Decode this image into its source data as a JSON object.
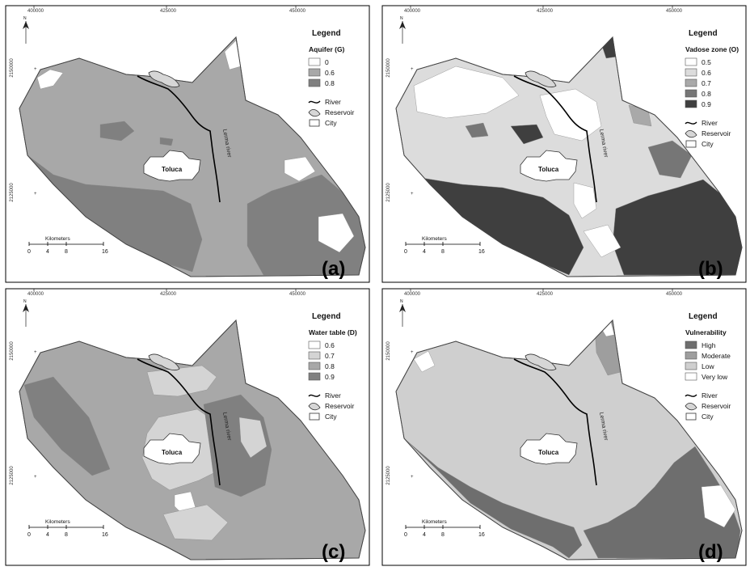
{
  "panels": [
    {
      "id": "a",
      "label": "(a)",
      "x_ticks": [
        "400000",
        "425000",
        "450000"
      ],
      "y_ticks": [
        "2150000",
        "2125000"
      ],
      "legend_title": "Legend",
      "legend_subtitle": "Aquifer (G)",
      "classes": [
        {
          "label": "0",
          "color": "#ffffff"
        },
        {
          "label": "0.6",
          "color": "#a8a8a8"
        },
        {
          "label": "0.8",
          "color": "#808080"
        }
      ],
      "base_color": "#a8a8a8",
      "features": {
        "river": "River",
        "reservoir": "Reservoir",
        "city": "City"
      },
      "city_name": "Toluca",
      "river_name": "Lerma river",
      "scale_title": "Kilometers",
      "scale_ticks": [
        "0",
        "4",
        "8",
        "16"
      ]
    },
    {
      "id": "b",
      "label": "(b)",
      "x_ticks": [
        "400000",
        "425000",
        "450000"
      ],
      "y_ticks": [
        "2150000",
        "2125000"
      ],
      "legend_title": "Legend",
      "legend_subtitle": "Vadose zone (O)",
      "classes": [
        {
          "label": "0.5",
          "color": "#ffffff"
        },
        {
          "label": "0.6",
          "color": "#dcdcdc"
        },
        {
          "label": "0.7",
          "color": "#a9a9a9"
        },
        {
          "label": "0.8",
          "color": "#767676"
        },
        {
          "label": "0.9",
          "color": "#3f3f3f"
        }
      ],
      "base_color": "#dcdcdc",
      "features": {
        "river": "River",
        "reservoir": "Reservoir",
        "city": "City"
      },
      "city_name": "Toluca",
      "river_name": "Lerma river",
      "scale_title": "Kilometers",
      "scale_ticks": [
        "0",
        "4",
        "8",
        "16"
      ]
    },
    {
      "id": "c",
      "label": "(c)",
      "x_ticks": [
        "400000",
        "425000",
        "450000"
      ],
      "y_ticks": [
        "2150000",
        "2125000"
      ],
      "legend_title": "Legend",
      "legend_subtitle": "Water table (D)",
      "classes": [
        {
          "label": "0.6",
          "color": "#ffffff"
        },
        {
          "label": "0.7",
          "color": "#d4d4d4"
        },
        {
          "label": "0.8",
          "color": "#a8a8a8"
        },
        {
          "label": "0.9",
          "color": "#808080"
        }
      ],
      "base_color": "#a8a8a8",
      "features": {
        "river": "River",
        "reservoir": "Reservoir",
        "city": "City"
      },
      "city_name": "Toluca",
      "river_name": "Lerma river",
      "scale_title": "Kilometers",
      "scale_ticks": [
        "0",
        "4",
        "8",
        "16"
      ]
    },
    {
      "id": "d",
      "label": "(d)",
      "x_ticks": [
        "400000",
        "425000",
        "450000"
      ],
      "y_ticks": [
        "2150000",
        "2125000"
      ],
      "legend_title": "Legend",
      "legend_subtitle": "Vulnerability",
      "classes": [
        {
          "label": "High",
          "color": "#6e6e6e"
        },
        {
          "label": "Moderate",
          "color": "#9e9e9e"
        },
        {
          "label": "Low",
          "color": "#cfcfcf"
        },
        {
          "label": "Very low",
          "color": "#ffffff"
        }
      ],
      "base_color": "#cfcfcf",
      "features": {
        "river": "River",
        "reservoir": "Reservoir",
        "city": "City"
      },
      "city_name": "Toluca",
      "river_name": "Lerma river",
      "scale_title": "Kilometers",
      "scale_ticks": [
        "0",
        "4",
        "8",
        "16"
      ]
    }
  ],
  "north_letter": "N"
}
